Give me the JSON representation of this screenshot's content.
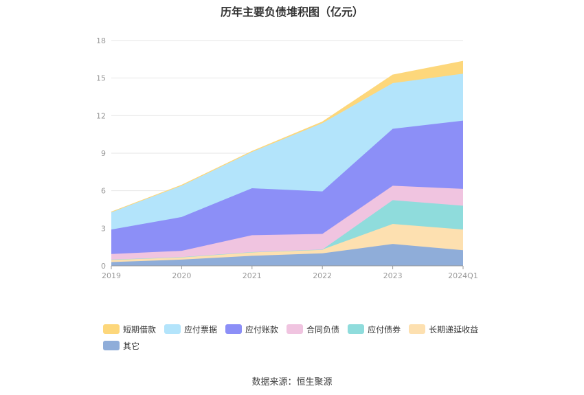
{
  "title": "历年主要负债堆积图（亿元）",
  "source": "数据来源：恒生聚源",
  "chart_data": {
    "type": "area",
    "stacked": true,
    "x": [
      "2019",
      "2020",
      "2021",
      "2022",
      "2023",
      "2024Q1"
    ],
    "ylim": [
      0,
      18
    ],
    "yticks": [
      0,
      3,
      6,
      9,
      12,
      15,
      18
    ],
    "grid": true,
    "legend_position": "bottom",
    "series": [
      {
        "name": "其它",
        "color": "#8fadd9",
        "values": [
          0.3,
          0.5,
          0.8,
          1.0,
          1.75,
          1.25
        ]
      },
      {
        "name": "长期递延收益",
        "color": "#fde0b0",
        "values": [
          0.2,
          0.2,
          0.3,
          0.3,
          1.6,
          1.65
        ]
      },
      {
        "name": "应付债券",
        "color": "#8fdcdc",
        "values": [
          0.0,
          0.0,
          0.0,
          0.0,
          1.9,
          1.9
        ]
      },
      {
        "name": "合同负债",
        "color": "#f0c4e0",
        "values": [
          0.45,
          0.5,
          1.35,
          1.25,
          1.15,
          1.35
        ]
      },
      {
        "name": "应付账款",
        "color": "#8c8ff7",
        "values": [
          1.95,
          2.7,
          3.75,
          3.4,
          4.55,
          5.45
        ]
      },
      {
        "name": "应付票据",
        "color": "#b3e4fb",
        "values": [
          1.4,
          2.5,
          2.9,
          5.45,
          3.65,
          3.75
        ]
      },
      {
        "name": "短期借款",
        "color": "#fdd77b",
        "values": [
          0.0,
          0.05,
          0.05,
          0.1,
          0.65,
          1.0
        ]
      }
    ]
  },
  "legend_order": [
    6,
    5,
    4,
    3,
    2,
    1,
    0
  ]
}
